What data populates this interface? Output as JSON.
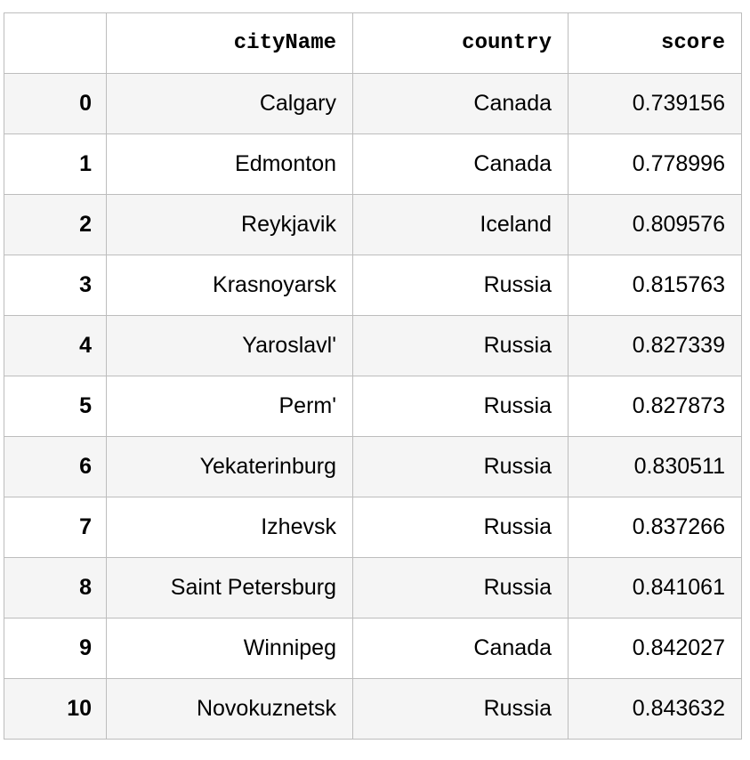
{
  "table": {
    "columns": [
      "",
      "cityName",
      "country",
      "score"
    ],
    "rows": [
      {
        "index": "0",
        "cityName": "Calgary",
        "country": "Canada",
        "score": "0.739156"
      },
      {
        "index": "1",
        "cityName": "Edmonton",
        "country": "Canada",
        "score": "0.778996"
      },
      {
        "index": "2",
        "cityName": "Reykjavik",
        "country": "Iceland",
        "score": "0.809576"
      },
      {
        "index": "3",
        "cityName": "Krasnoyarsk",
        "country": "Russia",
        "score": "0.815763"
      },
      {
        "index": "4",
        "cityName": "Yaroslavl'",
        "country": "Russia",
        "score": "0.827339"
      },
      {
        "index": "5",
        "cityName": "Perm'",
        "country": "Russia",
        "score": "0.827873"
      },
      {
        "index": "6",
        "cityName": "Yekaterinburg",
        "country": "Russia",
        "score": "0.830511"
      },
      {
        "index": "7",
        "cityName": "Izhevsk",
        "country": "Russia",
        "score": "0.837266"
      },
      {
        "index": "8",
        "cityName": "Saint Petersburg",
        "country": "Russia",
        "score": "0.841061"
      },
      {
        "index": "9",
        "cityName": "Winnipeg",
        "country": "Canada",
        "score": "0.842027"
      },
      {
        "index": "10",
        "cityName": "Novokuznetsk",
        "country": "Russia",
        "score": "0.843632"
      }
    ]
  },
  "colors": {
    "border": "#bdbdbd",
    "row_stripe": "#f5f5f5",
    "background": "#ffffff"
  }
}
